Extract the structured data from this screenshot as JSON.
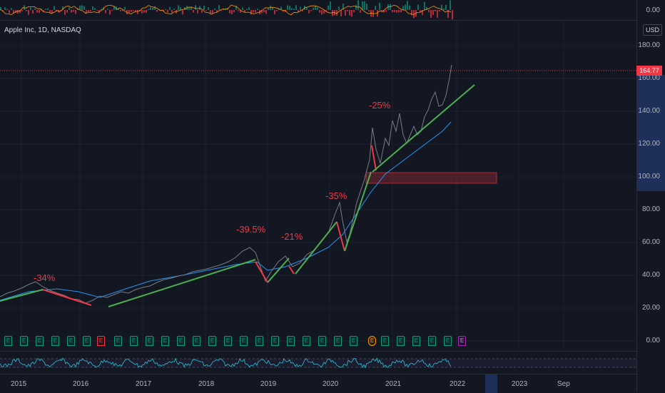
{
  "symbol": {
    "title": "Apple Inc, 1D, NASDAQ",
    "currency": "USD"
  },
  "current_price": "164.77",
  "top_axis": {
    "zero": "0.00"
  },
  "price_axis": [
    "180.00",
    "160.00",
    "140.00",
    "120.00",
    "100.00",
    "80.00",
    "60.00",
    "40.00",
    "20.00",
    "0.00"
  ],
  "time_axis": [
    "2015",
    "2016",
    "2017",
    "2018",
    "2019",
    "2020",
    "2021",
    "2022",
    "2023",
    "Sep"
  ],
  "drawdowns": [
    "-34%",
    "-39.5%",
    "-21%",
    "-35%",
    "-25%"
  ],
  "earnings_marker_label": "E",
  "colors": {
    "background": "#131722",
    "up": "#089981",
    "down": "#f23645",
    "trend": "#4caf50",
    "ma": "#2196f3"
  }
}
